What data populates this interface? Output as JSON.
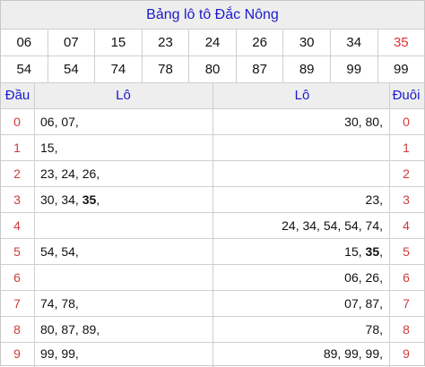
{
  "title": "Bảng lô tô Đắc Nông",
  "numbers_row1": [
    "06",
    "07",
    "15",
    "23",
    "24",
    "26",
    "30",
    "34",
    "35"
  ],
  "numbers_row2": [
    "54",
    "54",
    "74",
    "78",
    "80",
    "87",
    "89",
    "99",
    "99"
  ],
  "highlight_number": "35",
  "colors": {
    "title": "#1a1acd",
    "highlight": "#e03131",
    "index": "#d03b3b"
  },
  "headers": {
    "dau": "Đầu",
    "lo_left": "Lô",
    "lo_right": "Lô",
    "duoi": "Đuôi"
  },
  "rows": [
    {
      "dau": "0",
      "left": "06, 07,",
      "right": "30, 80,",
      "duoi": "0"
    },
    {
      "dau": "1",
      "left": "15,",
      "right": "",
      "duoi": "1"
    },
    {
      "dau": "2",
      "left": "23, 24, 26,",
      "right": "",
      "duoi": "2"
    },
    {
      "dau": "3",
      "left_pre": "30, 34, ",
      "left_hi": "35",
      "left_post": ",",
      "right": "23,",
      "duoi": "3"
    },
    {
      "dau": "4",
      "left": "",
      "right": "24, 34, 54, 54, 74,",
      "duoi": "4"
    },
    {
      "dau": "5",
      "left": "54, 54,",
      "right_pre": "15, ",
      "right_hi": "35",
      "right_post": ",",
      "duoi": "5"
    },
    {
      "dau": "6",
      "left": "",
      "right": "06, 26,",
      "duoi": "6"
    },
    {
      "dau": "7",
      "left": "74, 78,",
      "right": "07, 87,",
      "duoi": "7"
    },
    {
      "dau": "8",
      "left": "80, 87, 89,",
      "right": "78,",
      "duoi": "8"
    },
    {
      "dau": "9",
      "left": "99, 99,",
      "right": "89, 99, 99,",
      "duoi": "9"
    }
  ]
}
